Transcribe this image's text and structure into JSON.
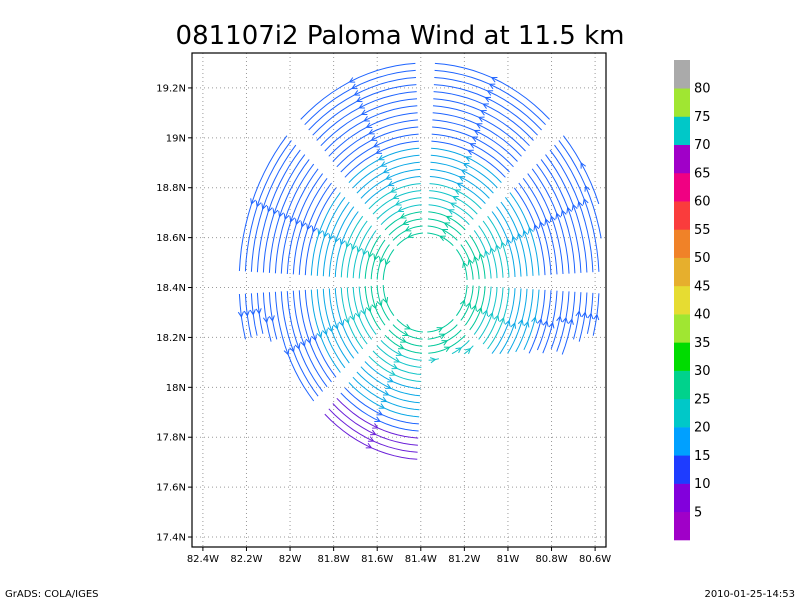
{
  "chart_data": {
    "type": "streamline",
    "title": "081107i2 Paloma Wind at 11.5 km",
    "x_ticks": [
      "82.4W",
      "82.2W",
      "82W",
      "81.8W",
      "81.6W",
      "81.4W",
      "81.2W",
      "81W",
      "80.8W",
      "80.6W"
    ],
    "x_values": [
      -82.4,
      -82.2,
      -82.0,
      -81.8,
      -81.6,
      -81.4,
      -81.2,
      -81.0,
      -80.8,
      -80.6
    ],
    "y_ticks": [
      "17.4N",
      "17.6N",
      "17.8N",
      "18N",
      "18.2N",
      "18.4N",
      "18.6N",
      "18.8N",
      "19N",
      "19.2N"
    ],
    "y_values": [
      17.4,
      17.6,
      17.8,
      18.0,
      18.2,
      18.4,
      18.6,
      18.8,
      19.0,
      19.2
    ],
    "xlim": [
      -82.45,
      -80.55
    ],
    "ylim": [
      17.36,
      19.34
    ],
    "grid": true,
    "center": {
      "lon": -81.38,
      "lat": 18.42
    },
    "colorbar": {
      "labels": [
        "5",
        "10",
        "15",
        "20",
        "25",
        "30",
        "35",
        "40",
        "45",
        "50",
        "55",
        "60",
        "65",
        "70",
        "75",
        "80"
      ],
      "colors": [
        "#a000c8",
        "#8200dc",
        "#1e3cff",
        "#00a0ff",
        "#00c8c8",
        "#00d28c",
        "#00dc00",
        "#a0e632",
        "#e6dc32",
        "#e6af2d",
        "#f08228",
        "#fa3c3c",
        "#f00082",
        "#a000c8",
        "#00c8c8",
        "#a0e632",
        "#aaaaaa"
      ]
    }
  },
  "footer": {
    "left": "GrADS: COLA/IGES",
    "right": "2010-01-25-14:53"
  }
}
